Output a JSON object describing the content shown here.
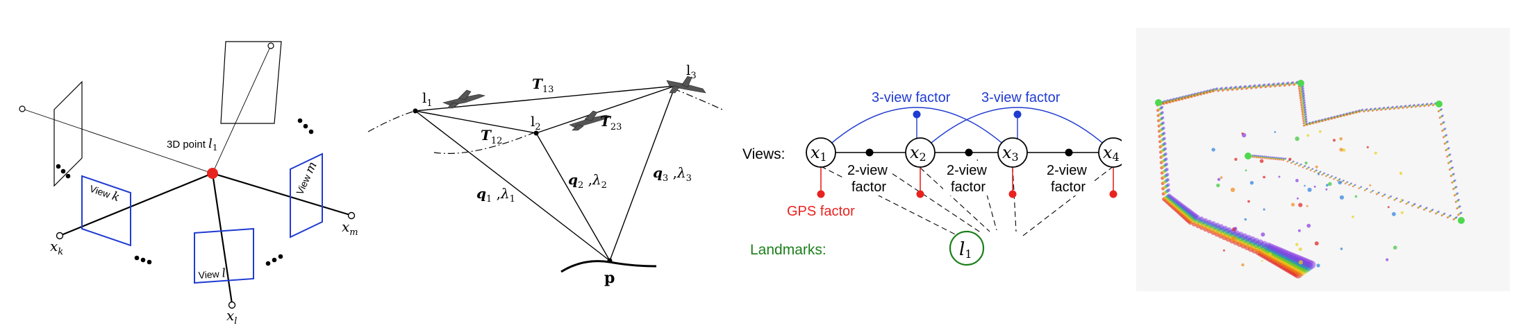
{
  "panel1": {
    "point_label_prefix": "3D point ",
    "point_label_var": "l",
    "point_label_sub": "1",
    "view_k": "View ",
    "view_k_var": "k",
    "view_l": "View ",
    "view_l_var": "l",
    "view_m": "View ",
    "view_m_var": "m",
    "x_k_var": "x",
    "x_k_sub": "k",
    "x_l_var": "x",
    "x_l_sub": "l",
    "x_m_var": "x",
    "x_m_sub": "m",
    "colors": {
      "point": "#e8231f",
      "view_frame": "#1f3bd1"
    }
  },
  "panel2": {
    "l1_main": "l",
    "l1_sub": "1",
    "l2_main": "l",
    "l2_sub": "2",
    "l3_main": "l",
    "l3_sub": "3",
    "t13_main": "T",
    "t13_sub": "13",
    "t12_main": "T",
    "t12_sub": "12",
    "t23_main": "T",
    "t23_sub": "23",
    "q1_main": "q",
    "q1_sub": "1",
    "q1_sep": " ,",
    "q1_lam": "λ",
    "q1_lam_sub": "1",
    "q2_main": "q",
    "q2_sub": "2",
    "q2_sep": " ,",
    "q2_lam": "λ",
    "q2_lam_sub": "2",
    "q3_main": "q",
    "q3_sub": "3",
    "q3_sep": " ,",
    "q3_lam": "λ",
    "q3_lam_sub": "3",
    "p_label": "p"
  },
  "panel3": {
    "views_label": "Views:",
    "landmarks_label": "Landmarks:",
    "gps_factor_label": "GPS factor",
    "three_view_factor_a": "3-view factor",
    "three_view_factor_b": "3-view factor",
    "two_view_factor_line1": "2-view",
    "two_view_factor_line2": "factor",
    "x1_var": "x",
    "x1_sub": "1",
    "x2_var": "x",
    "x2_sub": "2",
    "x3_var": "x",
    "x3_sub": "3",
    "x4_var": "x",
    "x4_sub": "4",
    "l1_var": "l",
    "l1_sub": "1",
    "colors": {
      "gps": "#e8231f",
      "three_view": "#1f3bd1",
      "landmark": "#1a7f1a"
    }
  }
}
